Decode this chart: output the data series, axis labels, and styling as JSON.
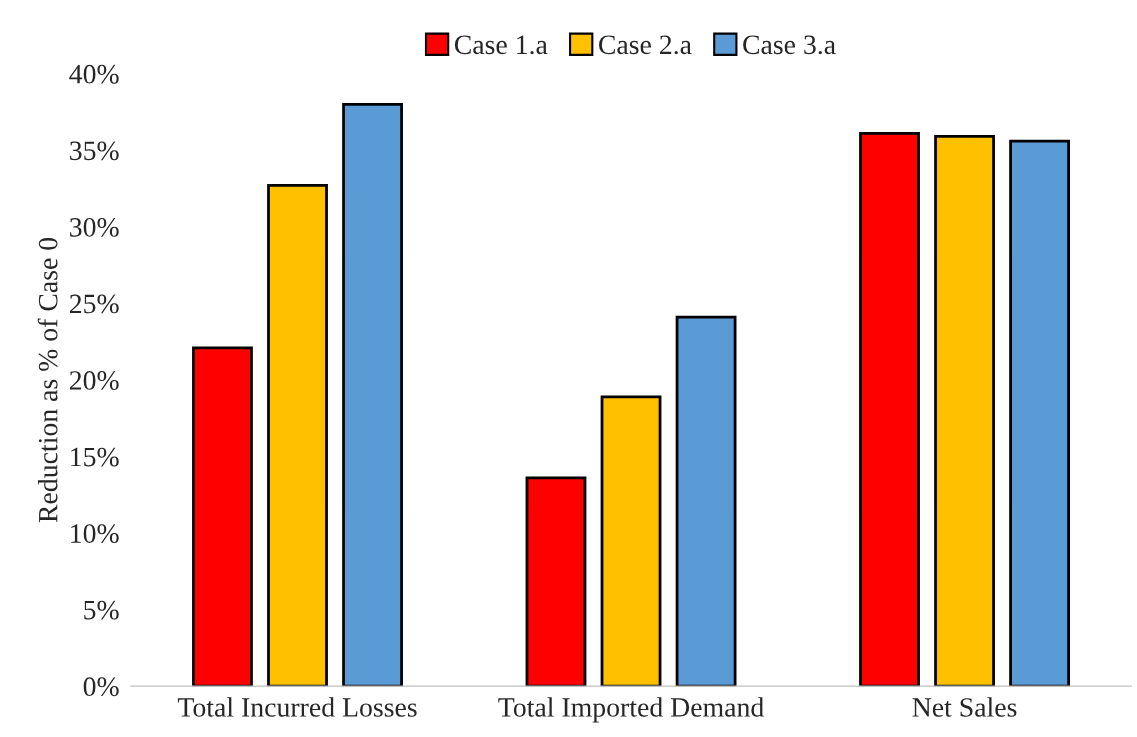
{
  "chart_data": {
    "type": "bar",
    "ylabel": "Reduction as % of Case 0",
    "categories": [
      "Total Incurred Losses",
      "Total Imported Demand",
      "Net Sales"
    ],
    "series": [
      {
        "name": "Case 1.a",
        "color": "#ff0000",
        "values": [
          22.1,
          13.6,
          36.1
        ]
      },
      {
        "name": "Case 2.a",
        "color": "#ffc000",
        "values": [
          32.7,
          18.9,
          35.9
        ]
      },
      {
        "name": "Case 3.a",
        "color": "#5b9bd5",
        "values": [
          38.0,
          24.1,
          35.6
        ]
      }
    ],
    "ylim": [
      0,
      40
    ],
    "yticks": [
      {
        "value": 0,
        "label": "0%"
      },
      {
        "value": 5,
        "label": "5%"
      },
      {
        "value": 10,
        "label": "10%"
      },
      {
        "value": 15,
        "label": "15%"
      },
      {
        "value": 20,
        "label": "20%"
      },
      {
        "value": 25,
        "label": "25%"
      },
      {
        "value": 30,
        "label": "30%"
      },
      {
        "value": 35,
        "label": "35%"
      },
      {
        "value": 40,
        "label": "40%"
      }
    ],
    "grid": false,
    "legend": "top"
  }
}
